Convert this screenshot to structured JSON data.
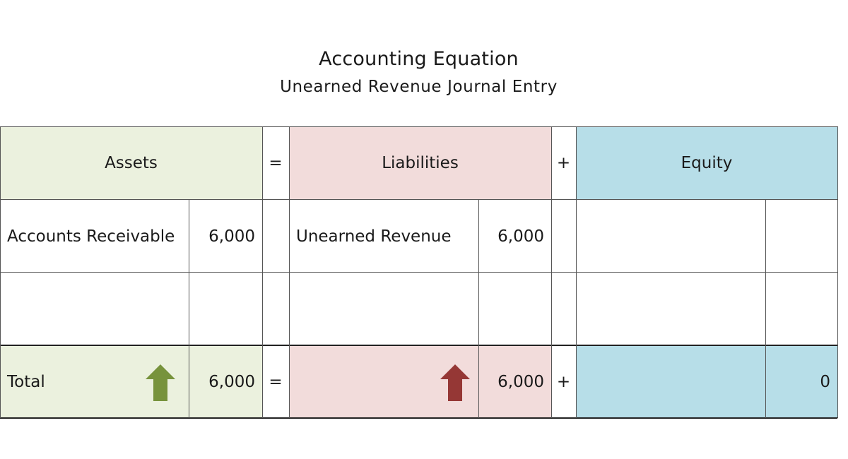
{
  "title": "Accounting Equation",
  "subtitle": "Unearned Revenue Journal Entry",
  "colors": {
    "assets_bg": "#ebf1de",
    "liabilities_bg": "#f2dcdb",
    "equity_bg": "#b7dee8",
    "up_arrow_assets": "#77933c",
    "up_arrow_liabilities": "#953735"
  },
  "header": {
    "assets": "Assets",
    "eq_sign": "=",
    "liabilities": "Liabilities",
    "plus_sign": "+",
    "equity": "Equity"
  },
  "rows": [
    {
      "asset_account": "Accounts Receivable",
      "asset_amount": "6,000",
      "liability_account": "Unearned Revenue",
      "liability_amount": "6,000",
      "equity_account": "",
      "equity_amount": ""
    },
    {
      "asset_account": "",
      "asset_amount": "",
      "liability_account": "",
      "liability_amount": "",
      "equity_account": "",
      "equity_amount": ""
    }
  ],
  "total": {
    "label": "Total",
    "assets": "6,000",
    "assets_direction": "up",
    "eq_sign": "=",
    "liabilities": "6,000",
    "liabilities_direction": "up",
    "plus_sign": "+",
    "equity": "0"
  }
}
